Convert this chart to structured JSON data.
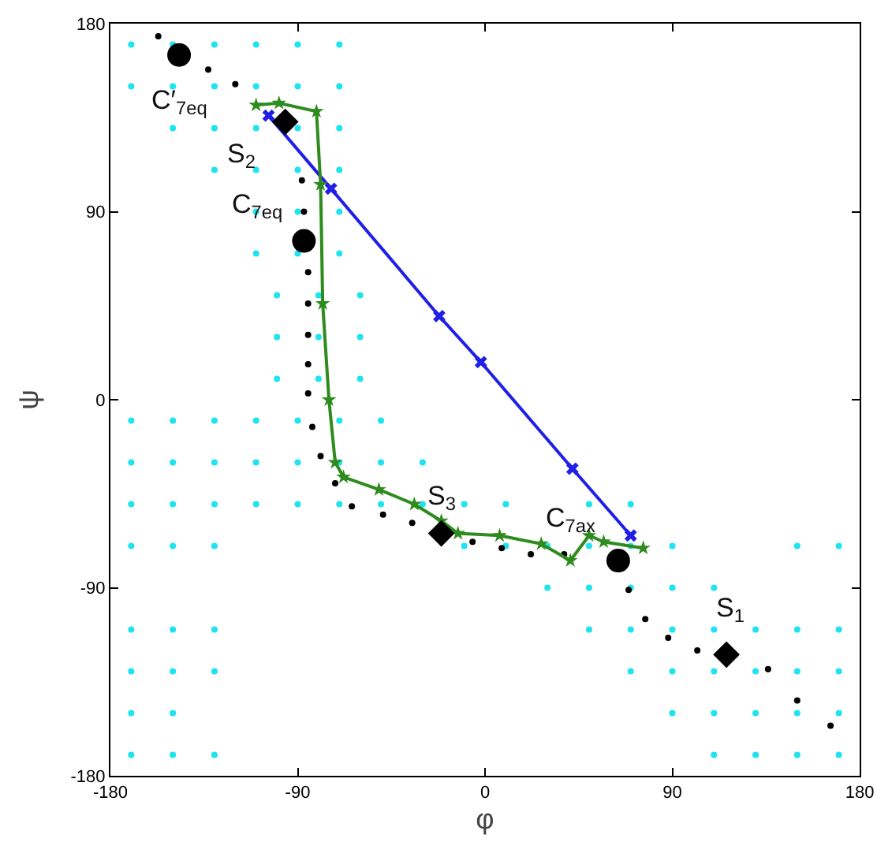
{
  "chart_data": {
    "type": "scatter",
    "xlabel": "φ",
    "ylabel": "ψ",
    "xlim": [
      -180,
      180
    ],
    "ylim": [
      -180,
      180
    ],
    "xticks": [
      -180,
      -90,
      0,
      90,
      180
    ],
    "yticks": [
      -180,
      -90,
      0,
      90,
      180
    ],
    "grid": false,
    "series": [
      {
        "type": "scatter",
        "color": "#1ee3f0",
        "marker": "circle",
        "x": [
          -170,
          -150,
          -130,
          -110,
          -90,
          -70,
          -170,
          -150,
          -130,
          -110,
          -90,
          -70,
          -150,
          -130,
          -110,
          -90,
          -70,
          -130,
          -110,
          -90,
          -70,
          -110,
          -90,
          -70,
          -110,
          -90,
          -70,
          -100,
          -80,
          -60,
          -100,
          -80,
          -60,
          -100,
          -80,
          -60,
          -170,
          -150,
          -130,
          -110,
          -90,
          -70,
          -50,
          -170,
          -150,
          -130,
          -110,
          -90,
          -70,
          -50,
          -30,
          -170,
          -150,
          -130,
          -110,
          -90,
          -70,
          -50,
          -30,
          -10,
          -170,
          -150,
          -130,
          -10,
          10,
          30,
          50,
          70,
          90,
          10,
          50,
          70,
          30,
          50,
          70,
          90,
          110,
          50,
          70,
          90,
          110,
          130,
          150,
          170,
          70,
          90,
          110,
          130,
          150,
          170,
          90,
          110,
          130,
          150,
          170,
          110,
          130,
          150,
          170,
          -170,
          -150,
          -130,
          -170,
          -150,
          -130,
          -170,
          -150,
          -170,
          -150,
          -130,
          150,
          170
        ],
        "values": [
          170,
          170,
          170,
          170,
          170,
          170,
          150,
          150,
          150,
          150,
          150,
          150,
          130,
          130,
          130,
          130,
          130,
          110,
          110,
          110,
          110,
          90,
          90,
          90,
          70,
          70,
          70,
          50,
          50,
          50,
          30,
          30,
          30,
          10,
          10,
          10,
          -10,
          -10,
          -10,
          -10,
          -10,
          -10,
          -10,
          -30,
          -30,
          -30,
          -30,
          -30,
          -30,
          -30,
          -30,
          -50,
          -50,
          -50,
          -50,
          -50,
          -50,
          -50,
          -50,
          -50,
          -70,
          -70,
          -70,
          -70,
          -70,
          -70,
          -70,
          -70,
          -70,
          -50,
          -50,
          -50,
          -90,
          -90,
          -90,
          -90,
          -90,
          -110,
          -110,
          -110,
          -110,
          -110,
          -110,
          -110,
          -130,
          -130,
          -130,
          -130,
          -130,
          -130,
          -150,
          -150,
          -150,
          -150,
          -150,
          -170,
          -170,
          -170,
          -170,
          -110,
          -110,
          -110,
          -130,
          -130,
          -130,
          -150,
          -150,
          -170,
          -170,
          -170,
          -70,
          -70
        ]
      },
      {
        "type": "scatter",
        "color": "#000000",
        "marker": "circle",
        "x": [
          -157,
          -133,
          -120,
          -88,
          -87,
          -85,
          -85,
          -85,
          -85,
          -85,
          -83,
          -79,
          -72,
          -64,
          -49,
          -35,
          -6,
          8,
          22,
          38,
          69,
          77,
          88,
          102,
          136,
          150,
          166
        ],
        "values": [
          174,
          158,
          151,
          105,
          90,
          61,
          46,
          31,
          17,
          3,
          -13,
          -27,
          -40,
          -51,
          -55,
          -59,
          -68,
          -71,
          -74,
          -74,
          -91,
          -105,
          -114,
          -120,
          -129,
          -144,
          -156
        ]
      },
      {
        "type": "line",
        "color": "#1f1fe6",
        "marker": "cross",
        "line_style": "solid",
        "x": [
          -104,
          -74,
          -22,
          -2,
          42,
          70
        ],
        "values": [
          136,
          101,
          40,
          18,
          -33,
          -65
        ]
      },
      {
        "type": "line",
        "color": "#2e8b1e",
        "marker": "star",
        "line_style": "solid",
        "x": [
          -110,
          -99,
          -81,
          -79,
          -78,
          -75,
          -72,
          -68,
          -51,
          -34,
          -21,
          -13,
          7,
          27,
          41,
          50,
          57,
          76
        ],
        "values": [
          141,
          142,
          138,
          103,
          46,
          0,
          -30,
          -37,
          -43,
          -50,
          -58,
          -64,
          -65,
          -69,
          -77,
          -65,
          -68,
          -71
        ]
      },
      {
        "type": "scatter",
        "color": "#000000",
        "marker": "circle",
        "x": [
          -147,
          -87,
          64
        ],
        "values": [
          165,
          76,
          -77
        ]
      },
      {
        "type": "scatter",
        "color": "#000000",
        "marker": "diamond",
        "x": [
          116,
          -96,
          -21
        ],
        "values": [
          -122,
          133,
          -64
        ]
      }
    ],
    "annotations": [
      {
        "text": "C′$_{7eq}$",
        "x": -147,
        "y": 165
      },
      {
        "text": "C$_{7eq}$",
        "x": -87,
        "y": 76
      },
      {
        "text": "C$_{7ax}$",
        "x": 64,
        "y": -77
      },
      {
        "text": "S$_{1}$",
        "x": 116,
        "y": -122
      },
      {
        "text": "S$_{2}$",
        "x": -96,
        "y": 133
      },
      {
        "text": "S$_{3}$",
        "x": -21,
        "y": -64
      }
    ]
  }
}
